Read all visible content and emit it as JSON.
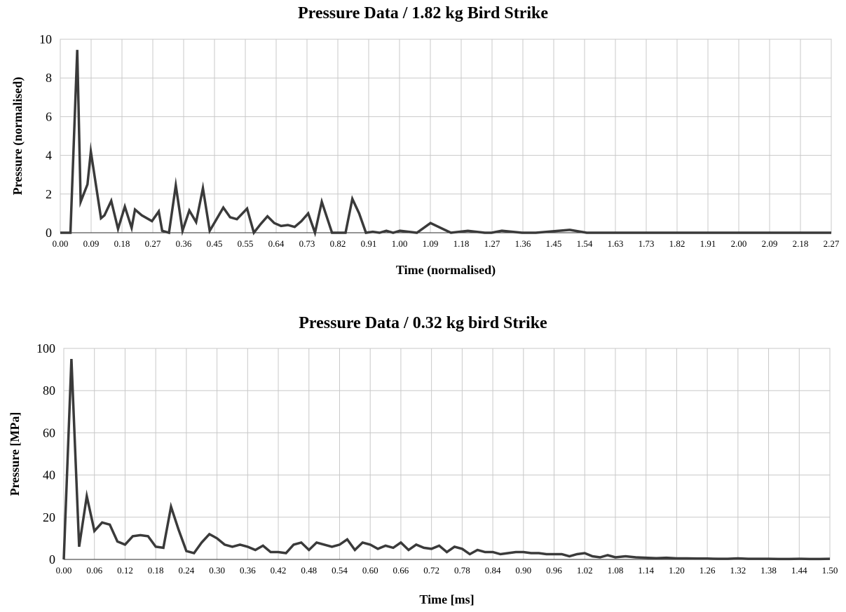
{
  "chart_data": [
    {
      "type": "line",
      "title": "Pressure Data / 1.82 kg Bird Strike",
      "xlabel": "Time (normalised)",
      "ylabel": "Pressure (normalised)",
      "ylim": [
        0,
        10
      ],
      "yticks": [
        "0",
        "2",
        "4",
        "6",
        "8",
        "10"
      ],
      "xticks": [
        "0.00",
        "0.09",
        "0.18",
        "0.27",
        "0.36",
        "0.45",
        "0.55",
        "0.64",
        "0.73",
        "0.82",
        "0.91",
        "1.00",
        "1.09",
        "1.18",
        "1.27",
        "1.36",
        "1.45",
        "1.54",
        "1.63",
        "1.73",
        "1.82",
        "1.91",
        "2.00",
        "2.09",
        "2.18",
        "2.27"
      ],
      "grid": true,
      "series": [
        {
          "x": [
            0.0,
            0.03,
            0.05,
            0.06,
            0.08,
            0.09,
            0.12,
            0.13,
            0.15,
            0.17,
            0.19,
            0.21,
            0.22,
            0.24,
            0.27,
            0.29,
            0.3,
            0.32,
            0.34,
            0.36,
            0.38,
            0.4,
            0.42,
            0.44,
            0.46,
            0.48,
            0.5,
            0.52,
            0.55,
            0.57,
            0.59,
            0.61,
            0.63,
            0.65,
            0.67,
            0.69,
            0.71,
            0.73,
            0.75,
            0.77,
            0.8,
            0.82,
            0.84,
            0.86,
            0.88,
            0.9,
            0.92,
            0.94,
            0.96,
            0.98,
            1.0,
            1.05,
            1.09,
            1.15,
            1.2,
            1.25,
            1.27,
            1.3,
            1.36,
            1.4,
            1.5,
            1.55,
            1.58,
            1.62,
            1.65,
            2.27
          ],
          "y": [
            0,
            0,
            9.45,
            1.6,
            2.5,
            4.2,
            0.75,
            0.9,
            1.65,
            0.2,
            1.35,
            0.25,
            1.2,
            0.9,
            0.6,
            1.1,
            0.1,
            0,
            2.45,
            0.1,
            1.15,
            0.55,
            2.3,
            0.1,
            0.7,
            1.3,
            0.8,
            0.7,
            1.25,
            0,
            0.45,
            0.85,
            0.5,
            0.35,
            0.4,
            0.3,
            0.6,
            1.0,
            0,
            1.6,
            0,
            0,
            0,
            1.75,
            1.0,
            0,
            0.05,
            0,
            0.1,
            0,
            0.1,
            0,
            0.5,
            0,
            0.1,
            0,
            0,
            0.1,
            0,
            0,
            0.15,
            0,
            0,
            0,
            0,
            0
          ]
        }
      ]
    },
    {
      "type": "line",
      "title": "Pressure Data / 0.32 kg bird Strike",
      "xlabel": "Time [ms]",
      "ylabel": "Pressure [MPa]",
      "ylim": [
        0,
        100
      ],
      "yticks": [
        "0",
        "20",
        "40",
        "60",
        "80",
        "100"
      ],
      "xticks": [
        "0.00",
        "0.06",
        "0.12",
        "0.18",
        "0.24",
        "0.30",
        "0.36",
        "0.42",
        "0.48",
        "0.54",
        "0.60",
        "0.66",
        "0.72",
        "0.78",
        "0.84",
        "0.90",
        "0.96",
        "1.02",
        "1.08",
        "1.14",
        "1.20",
        "1.26",
        "1.32",
        "1.38",
        "1.44",
        "1.50"
      ],
      "grid": true,
      "series": [
        {
          "x": [
            0.0,
            0.015,
            0.03,
            0.045,
            0.06,
            0.075,
            0.09,
            0.105,
            0.12,
            0.135,
            0.15,
            0.165,
            0.18,
            0.195,
            0.21,
            0.225,
            0.24,
            0.255,
            0.27,
            0.285,
            0.3,
            0.315,
            0.33,
            0.345,
            0.36,
            0.375,
            0.39,
            0.405,
            0.42,
            0.435,
            0.45,
            0.465,
            0.48,
            0.495,
            0.51,
            0.525,
            0.54,
            0.555,
            0.57,
            0.585,
            0.6,
            0.615,
            0.63,
            0.645,
            0.66,
            0.675,
            0.69,
            0.705,
            0.72,
            0.735,
            0.75,
            0.765,
            0.78,
            0.795,
            0.81,
            0.825,
            0.84,
            0.855,
            0.87,
            0.885,
            0.9,
            0.915,
            0.93,
            0.945,
            0.96,
            0.975,
            0.99,
            1.005,
            1.02,
            1.035,
            1.05,
            1.065,
            1.08,
            1.1,
            1.12,
            1.14,
            1.16,
            1.18,
            1.2,
            1.22,
            1.24,
            1.26,
            1.28,
            1.3,
            1.32,
            1.34,
            1.36,
            1.38,
            1.4,
            1.42,
            1.44,
            1.46,
            1.48,
            1.5
          ],
          "y": [
            0,
            95,
            6,
            30,
            13.5,
            17.5,
            16.5,
            8.5,
            7,
            11,
            11.5,
            11,
            6,
            5.5,
            25,
            14,
            4,
            3,
            8,
            12,
            10,
            7,
            6,
            7,
            6,
            4.5,
            6.5,
            3.5,
            3.5,
            3,
            7,
            8,
            4.5,
            8,
            7,
            6,
            7,
            9.5,
            4.5,
            8,
            7,
            5,
            6.5,
            5.5,
            8,
            4.5,
            7,
            5.5,
            5,
            6.5,
            3.5,
            6,
            5,
            2.5,
            4.5,
            3.5,
            3.5,
            2.5,
            3,
            3.5,
            3.5,
            3,
            3,
            2.5,
            2.5,
            2.5,
            1.5,
            2.5,
            3,
            1.5,
            1,
            2,
            1,
            1.5,
            1,
            0.8,
            0.6,
            0.8,
            0.5,
            0.5,
            0.4,
            0.4,
            0.3,
            0.3,
            0.5,
            0.3,
            0.3,
            0.3,
            0.2,
            0.2,
            0.3,
            0.2,
            0.2,
            0.3
          ]
        }
      ]
    }
  ]
}
